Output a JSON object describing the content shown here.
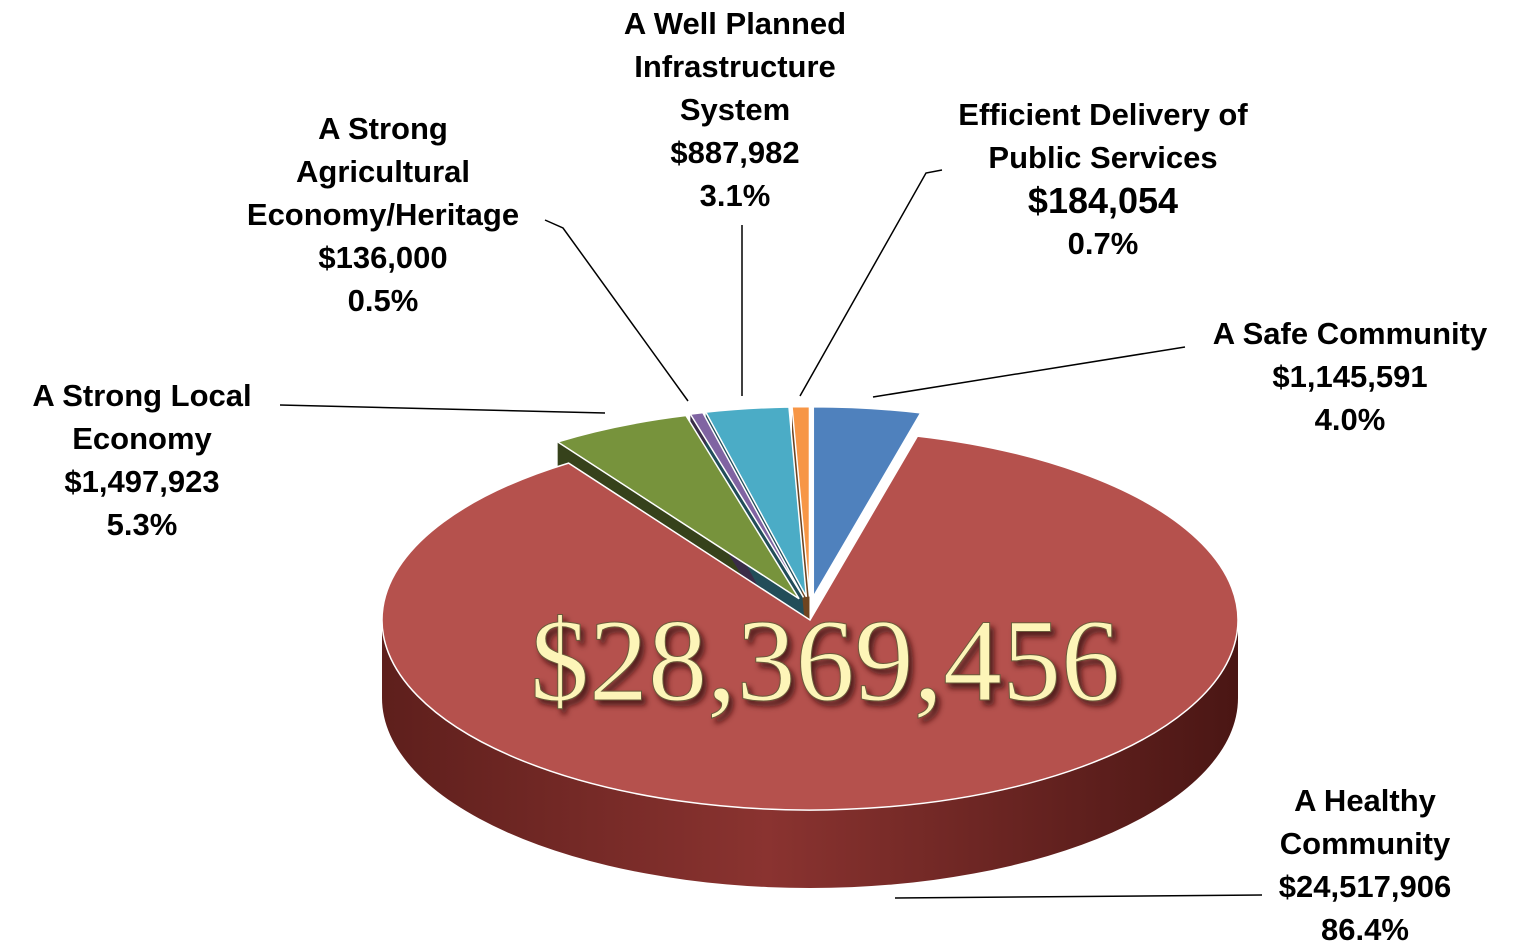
{
  "chart_data": {
    "type": "pie",
    "center_label": "$28,369,456",
    "categories": [
      "A Safe Community",
      "A Healthy Community",
      "A Strong Local Economy",
      "A Strong Agricultural Economy/Heritage",
      "A Well Planned Infrastructure System",
      "Efficient Delivery of Public Services"
    ],
    "values": [
      1145591,
      24517906,
      1497923,
      136000,
      887982,
      184054
    ],
    "value_labels": [
      "$1,145,591",
      "$24,517,906",
      "$1,497,923",
      "$136,000",
      "$887,982",
      "$184,054"
    ],
    "percentages": [
      4.0,
      86.4,
      5.3,
      0.5,
      3.1,
      0.7
    ],
    "percentage_labels": [
      "4.0%",
      "86.4%",
      "5.3%",
      "0.5%",
      "3.1%",
      "0.7%"
    ],
    "colors": [
      "#4f81bd",
      "#b5514d",
      "#77933c",
      "#8064a2",
      "#4bacc6",
      "#f79646"
    ],
    "exploded": [
      true,
      false,
      true,
      true,
      true,
      true
    ]
  }
}
